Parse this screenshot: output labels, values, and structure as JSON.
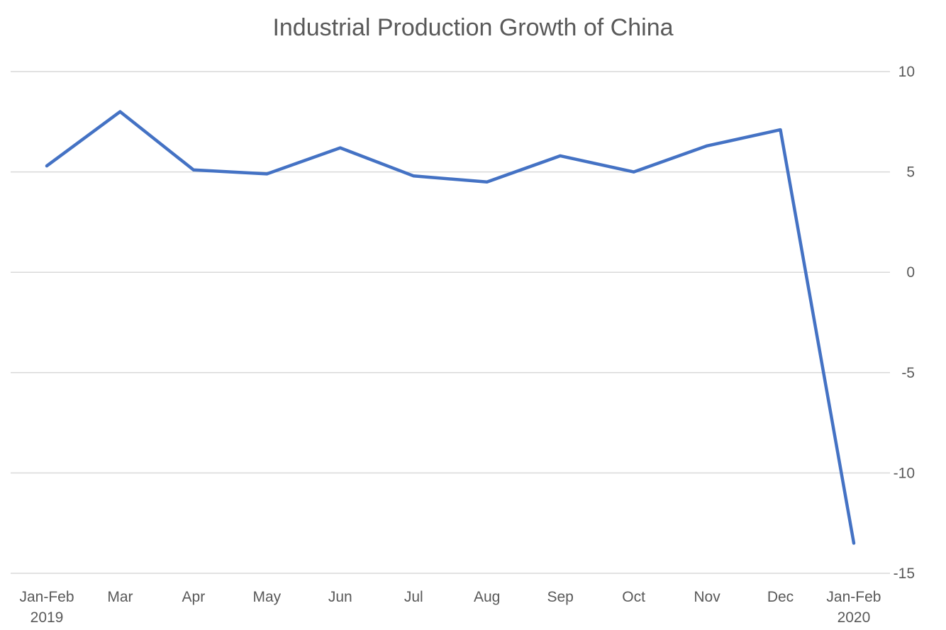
{
  "chart_data": {
    "type": "line",
    "title": "Industrial Production Growth of China",
    "categories": [
      "Jan-Feb 2019",
      "Mar",
      "Apr",
      "May",
      "Jun",
      "Jul",
      "Aug",
      "Sep",
      "Oct",
      "Nov",
      "Dec",
      "Jan-Feb 2020"
    ],
    "category_lines": [
      [
        "Jan-Feb",
        "2019"
      ],
      [
        "Mar"
      ],
      [
        "Apr"
      ],
      [
        "May"
      ],
      [
        "Jun"
      ],
      [
        "Jul"
      ],
      [
        "Aug"
      ],
      [
        "Sep"
      ],
      [
        "Oct"
      ],
      [
        "Nov"
      ],
      [
        "Dec"
      ],
      [
        "Jan-Feb",
        "2020"
      ]
    ],
    "series": [
      {
        "values": [
          5.3,
          8.0,
          5.1,
          4.9,
          6.2,
          4.8,
          4.5,
          5.8,
          5.0,
          6.3,
          7.1,
          -13.5
        ],
        "color": "#4472C4"
      }
    ],
    "ylim": [
      -15,
      10
    ],
    "yticks": [
      "10",
      "5",
      "0",
      "-5",
      "-10",
      "-15"
    ],
    "ytick_values": [
      10,
      5,
      0,
      -5,
      -10,
      -15
    ],
    "y_axis_side": "right",
    "grid": true,
    "gridline_color": "#D9D9D9",
    "text_color": "#595959"
  }
}
